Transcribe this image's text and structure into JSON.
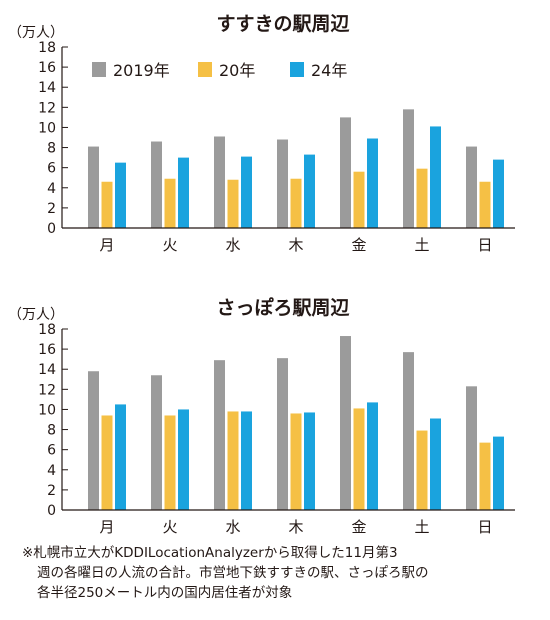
{
  "chart_data": [
    {
      "type": "bar",
      "title": "すすきの駅周辺",
      "ylabel": "（万人）",
      "xlabel": "",
      "ylim": [
        0,
        18
      ],
      "yticks": [
        0,
        2,
        4,
        6,
        8,
        10,
        12,
        14,
        16,
        18
      ],
      "categories": [
        "月",
        "火",
        "水",
        "木",
        "金",
        "土",
        "日"
      ],
      "legend_position": "top-left",
      "grid": false,
      "series": [
        {
          "name": "2019年",
          "color": "#9b9b9b",
          "values": [
            8.1,
            8.6,
            9.1,
            8.8,
            11.0,
            11.8,
            8.1
          ]
        },
        {
          "name": "20年",
          "color": "#f5c045",
          "values": [
            4.6,
            4.9,
            4.8,
            4.9,
            5.6,
            5.9,
            4.6
          ]
        },
        {
          "name": "24年",
          "color": "#1aa3de",
          "values": [
            6.5,
            7.0,
            7.1,
            7.3,
            8.9,
            10.1,
            6.8
          ]
        }
      ]
    },
    {
      "type": "bar",
      "title": "さっぽろ駅周辺",
      "ylabel": "（万人）",
      "xlabel": "",
      "ylim": [
        0,
        18
      ],
      "yticks": [
        0,
        2,
        4,
        6,
        8,
        10,
        12,
        14,
        16,
        18
      ],
      "categories": [
        "月",
        "火",
        "水",
        "木",
        "金",
        "土",
        "日"
      ],
      "grid": false,
      "series": [
        {
          "name": "2019年",
          "color": "#9b9b9b",
          "values": [
            13.8,
            13.4,
            14.9,
            15.1,
            17.3,
            15.7,
            12.3
          ]
        },
        {
          "name": "20年",
          "color": "#f5c045",
          "values": [
            9.4,
            9.4,
            9.8,
            9.6,
            10.1,
            7.9,
            6.7
          ]
        },
        {
          "name": "24年",
          "color": "#1aa3de",
          "values": [
            10.5,
            10.0,
            9.8,
            9.7,
            10.7,
            9.1,
            7.3
          ]
        }
      ]
    }
  ],
  "note": {
    "line1": "※札幌市立大がKDDILocationAnalyzerから取得した11月第3",
    "line2": "週の各曜日の人流の合計。市営地下鉄すすきの駅、さっぽろ駅の",
    "line3": "各半径250メートル内の国内居住者が対象"
  }
}
